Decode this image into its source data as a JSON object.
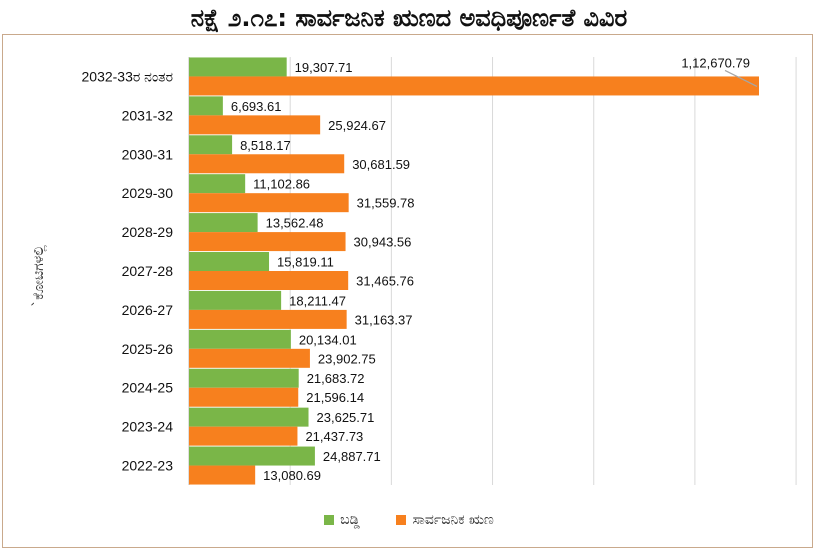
{
  "chart_data": {
    "type": "bar",
    "orientation": "horizontal",
    "title": "ನಕ್ಷೆ ೨.೧೭: ಸಾರ್ವಜನಿಕ ಋಣದ ಅವಧಿಪೂರ್ಣತೆ ವಿವಿರ",
    "ylabel": "`ಕೋಟಿಗಳಲ್ಲಿ",
    "xlabel": "",
    "categories": [
      "2032-33ರ ನಂತರ",
      "2031-32",
      "2030-31",
      "2029-30",
      "2028-29",
      "2027-28",
      "2026-27",
      "2025-26",
      "2024-25",
      "2023-24",
      "2022-23"
    ],
    "series": [
      {
        "name": "ಬಡ್ಡಿ",
        "color": "#7ab648",
        "values": [
          19307.71,
          6693.61,
          8518.17,
          11102.86,
          13562.48,
          15819.11,
          18211.47,
          20134.01,
          21683.72,
          23625.71,
          24887.71
        ],
        "labels": [
          "19,307.71",
          "6,693.61",
          "8,518.17",
          "11,102.86",
          "13,562.48",
          "15,819.11",
          "18,211.47",
          "20,134.01",
          "21,683.72",
          "23,625.71",
          "24,887.71"
        ]
      },
      {
        "name": "ಸಾರ್ವಜನಿಕ ಋಣ",
        "color": "#f7801e",
        "values": [
          112670.79,
          25924.67,
          30681.59,
          31559.78,
          30943.56,
          31465.76,
          31163.37,
          23902.75,
          21596.14,
          21437.73,
          13080.69
        ],
        "labels": [
          "1,12,670.79",
          "25,924.67",
          "30,681.59",
          "31,559.78",
          "30,943.56",
          "31,465.76",
          "31,163.37",
          "23,902.75",
          "21,596.14",
          "21,437.73",
          "13,080.69"
        ]
      }
    ],
    "grid": true,
    "legend_position": "bottom"
  }
}
